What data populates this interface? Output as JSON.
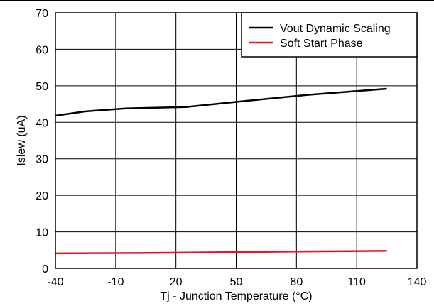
{
  "chart_data": {
    "type": "line",
    "xlabel": "Tj - Junction Temperature (°C)",
    "ylabel": "Islew (uA)",
    "xlim": [
      -40,
      140
    ],
    "ylim": [
      0,
      70
    ],
    "xticks": [
      "-40",
      "-10",
      "20",
      "50",
      "80",
      "110",
      "140"
    ],
    "yticks": [
      "0",
      "10",
      "20",
      "30",
      "40",
      "50",
      "60",
      "70"
    ],
    "grid": true,
    "legend_position": "top-right",
    "series": [
      {
        "name": "Vout Dynamic Scaling",
        "color": "#000000",
        "x": [
          -40,
          -25,
          -5,
          25,
          50,
          85,
          125
        ],
        "y": [
          41.8,
          43.0,
          43.8,
          44.2,
          45.6,
          47.5,
          49.2
        ]
      },
      {
        "name": "Soft Start Phase",
        "color": "#e8141e",
        "x": [
          -40,
          0,
          40,
          80,
          125
        ],
        "y": [
          4.1,
          4.2,
          4.4,
          4.6,
          4.8
        ]
      }
    ]
  }
}
